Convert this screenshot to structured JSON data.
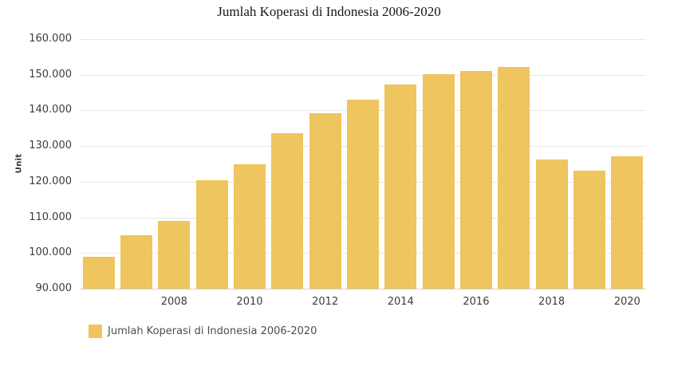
{
  "title": "Jumlah Koperasi di Indonesia 2006-2020",
  "y_axis": {
    "title": "Unit",
    "tick_labels": [
      "160.000",
      "150.000",
      "140.000",
      "130.000",
      "120.000",
      "110.000",
      "100.000",
      "90.000"
    ]
  },
  "legend": {
    "label": "Jumlah Koperasi di Indonesia 2006-2020"
  },
  "colors": {
    "bar": "#eec55e",
    "gridline": "#e7e7e7",
    "axis_line": "#cfcfcf",
    "tick_text": "#3c3c3c",
    "legend_text": "#4d4d4d",
    "title_text": "#161616"
  },
  "chart_data": {
    "type": "bar",
    "title": "Jumlah Koperasi di Indonesia 2006-2020",
    "xlabel": "",
    "ylabel": "Unit",
    "categories": [
      "2006",
      "2007",
      "2008",
      "2009",
      "2010",
      "2011",
      "2012",
      "2013",
      "2014",
      "2015",
      "2016",
      "2017",
      "2018",
      "2019",
      "2020"
    ],
    "values": [
      98944,
      104999,
      108930,
      120473,
      124855,
      133666,
      139321,
      143117,
      147249,
      150223,
      151170,
      152282,
      126343,
      123048,
      127124
    ],
    "x_tick_labels": [
      "",
      "",
      "2008",
      "",
      "2010",
      "",
      "2012",
      "",
      "2014",
      "",
      "2016",
      "",
      "2018",
      "",
      "2020"
    ],
    "ylim": [
      90000,
      160000
    ],
    "y_tick_step": 10000,
    "grid": true,
    "legend_position": "bottom-left",
    "bar_color": "#eec55e"
  }
}
